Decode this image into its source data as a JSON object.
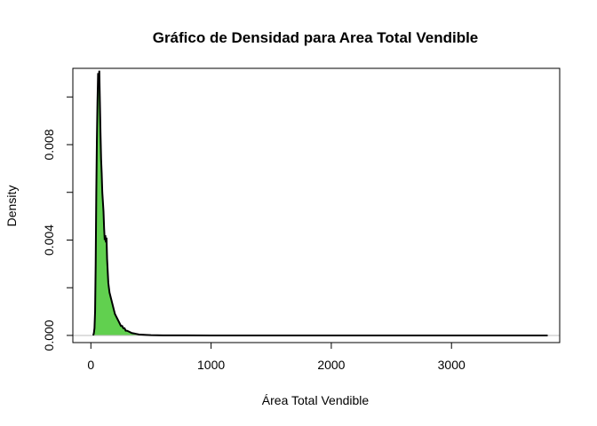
{
  "chart_data": {
    "type": "area",
    "title": "Gráfico de Densidad para Area Total Vendible",
    "xlabel": "Área Total Vendible",
    "ylabel": "Density",
    "xlim": [
      -150,
      3900
    ],
    "ylim": [
      -0.0003,
      0.0112
    ],
    "x_ticks": [
      0,
      1000,
      2000,
      3000
    ],
    "x_tick_labels": [
      "0",
      "1000",
      "2000",
      "3000"
    ],
    "y_ticks": [
      0.0,
      0.002,
      0.004,
      0.006,
      0.008,
      0.01
    ],
    "y_tick_labels": [
      "0.000",
      "",
      "0.004",
      "",
      "0.008",
      ""
    ],
    "fill_color": "#61d04f",
    "line_color": "#000000",
    "baseline_color": "#bebebe",
    "grid": false,
    "series": [
      {
        "x": [
          20,
          25,
          30,
          35,
          40,
          45,
          50,
          55,
          60,
          65,
          70,
          75,
          80,
          85,
          90,
          95,
          100,
          105,
          110,
          115,
          120,
          125,
          130,
          135,
          140,
          145,
          150,
          155,
          160,
          165,
          170,
          180,
          190,
          200,
          210,
          220,
          230,
          240,
          250,
          260,
          270,
          280,
          290,
          300,
          320,
          340,
          360,
          380,
          400,
          430,
          460,
          500,
          550,
          600,
          700,
          800,
          1000,
          1500,
          2000,
          2500,
          3000,
          3500,
          3800
        ],
        "y": [
          0.0,
          0.0001,
          0.0003,
          0.001,
          0.003,
          0.006,
          0.0082,
          0.0098,
          0.011,
          0.0107,
          0.0111,
          0.0098,
          0.0085,
          0.0074,
          0.0068,
          0.006,
          0.0056,
          0.0052,
          0.0045,
          0.004,
          0.0042,
          0.0039,
          0.0041,
          0.0032,
          0.0027,
          0.0022,
          0.002,
          0.0018,
          0.0017,
          0.0016,
          0.0015,
          0.0013,
          0.0011,
          0.0009,
          0.0008,
          0.0007,
          0.0006,
          0.0005,
          0.0004,
          0.0004,
          0.0003,
          0.0003,
          0.0002,
          0.0002,
          0.00015,
          0.0001,
          8e-05,
          6e-05,
          4e-05,
          3e-05,
          2e-05,
          1e-05,
          5e-06,
          2e-06,
          1e-06,
          5e-07,
          0.0,
          0.0,
          0.0,
          0.0,
          0.0,
          0.0,
          0.0
        ]
      }
    ]
  }
}
